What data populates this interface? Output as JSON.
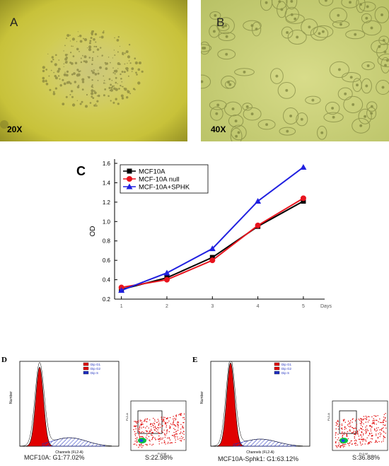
{
  "panels": {
    "a": {
      "letter": "A",
      "mag": "20X"
    },
    "b": {
      "letter": "B",
      "mag": "40X"
    },
    "c": {
      "letter": "C"
    },
    "d": {
      "letter": "D",
      "caption_g1": "MCF10A: G1:77.02%",
      "caption_s": "S:22.98%"
    },
    "e": {
      "letter": "E",
      "caption_g1": "MCF10A-Sphk1: G1:63.12%",
      "caption_s": "S:36.88%"
    }
  },
  "flow_legend": [
    "Dip G1",
    "Dip G2",
    "Dip S"
  ],
  "flow_axes": {
    "x": "Channels (FL2-A)",
    "y": "Number",
    "scatter_x": "FL2-W",
    "scatter_y": "FL2-A"
  },
  "chart_data": {
    "type": "line",
    "x": [
      1,
      2,
      3,
      4,
      5
    ],
    "xlabel": "Days",
    "ylabel": "OD",
    "ylim": [
      0.2,
      1.6
    ],
    "yticks": [
      "0.2",
      "0.4",
      "0.6",
      "0.8",
      "1.0",
      "1.2",
      "1.4",
      "1.6"
    ],
    "xticks": [
      "1",
      "2",
      "3",
      "4",
      "5"
    ],
    "legend_position": "top-left",
    "series": [
      {
        "name": "MCF10A",
        "color": "#000000",
        "marker": "square",
        "values": [
          0.3,
          0.42,
          0.63,
          0.95,
          1.21
        ]
      },
      {
        "name": "MCF-10A null",
        "color": "#e8141e",
        "marker": "circle",
        "values": [
          0.32,
          0.4,
          0.6,
          0.96,
          1.24
        ]
      },
      {
        "name": "MCF-10A+SPHK",
        "color": "#2020e0",
        "marker": "triangle",
        "values": [
          0.29,
          0.47,
          0.72,
          1.21,
          1.56
        ]
      }
    ]
  }
}
